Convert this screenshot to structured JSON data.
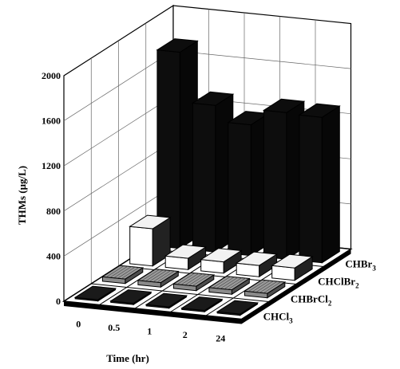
{
  "chart_data": {
    "type": "bar",
    "subtype": "3d-column",
    "title": "",
    "xlabel": "Time (hr)",
    "ylabel": "THMs (μg/L)",
    "ylim": [
      0,
      2000
    ],
    "yticks": [
      "0",
      "400",
      "800",
      "1200",
      "1600",
      "2000"
    ],
    "categories": [
      "0",
      "0.5",
      "1",
      "2",
      "24"
    ],
    "grid": true,
    "series": [
      {
        "label_base": "CHCl",
        "label_sub": "3",
        "values": [
          12,
          12,
          12,
          12,
          12
        ],
        "color": "#1a1a1a"
      },
      {
        "label_base": "CHBrCl",
        "label_sub": "2",
        "values": [
          40,
          40,
          40,
          40,
          40
        ],
        "color": "#8a8a8a"
      },
      {
        "label_base": "CHClBr",
        "label_sub": "2",
        "values": [
          330,
          100,
          100,
          100,
          110
        ],
        "color": "#ffffff"
      },
      {
        "label_base": "CHBr",
        "label_sub": "3",
        "values": [
          1740,
          1300,
          1160,
          1300,
          1290
        ],
        "color": "#0d0d0d"
      }
    ]
  }
}
